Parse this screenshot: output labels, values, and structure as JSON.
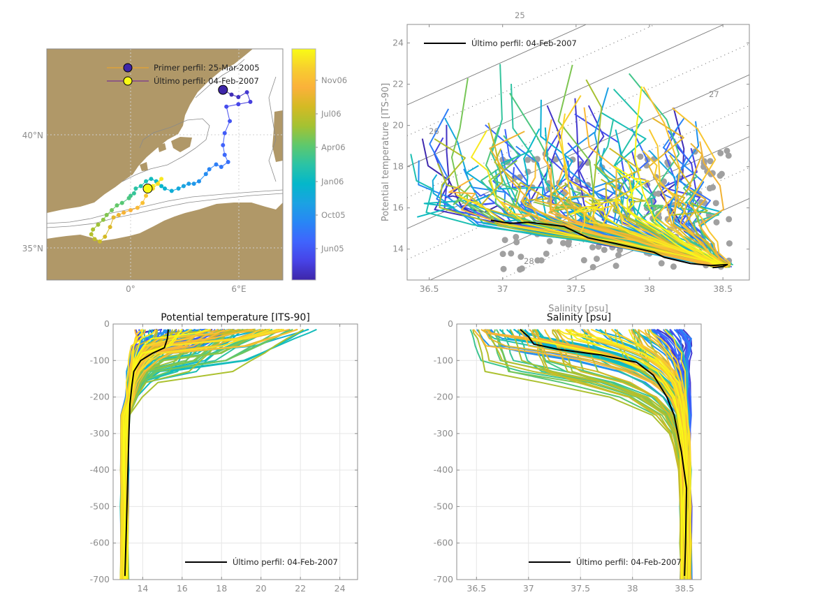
{
  "colors": {
    "land": "#b09868",
    "axis": "#8c8c8c",
    "tick_text": "#8c8c8c",
    "grid": "#e6e6e6",
    "isopycnal": "#7a7a7a",
    "last_profile": "#000000",
    "scatter_gray": "#a0a0a0",
    "colormap": [
      "#3e26a8",
      "#4743e7",
      "#3f64fd",
      "#2886f5",
      "#1ba2e2",
      "#04b7ca",
      "#2bc3a5",
      "#5ec86c",
      "#a4c232",
      "#d4ba24",
      "#fbb13a",
      "#f7cf2e",
      "#f9fb15"
    ]
  },
  "map_panel": {
    "legend": [
      {
        "label": "Primer perfil: 25-Mar-2005",
        "marker_color": "#3e26a8",
        "line_color": "#f5a623"
      },
      {
        "label": "Último perfil: 04-Feb-2007",
        "marker_color": "#f9fb15",
        "line_color": "#6a1b9a"
      }
    ],
    "lat_ticks": [
      "40°N",
      "35°N"
    ],
    "lon_ticks": [
      "0°",
      "6°E"
    ],
    "colorbar_ticks": [
      "Nov06",
      "Jul06",
      "Apr06",
      "Jan06",
      "Oct05",
      "Jun05"
    ]
  },
  "chart_data": [
    {
      "type": "scatter",
      "title": "",
      "description": "Float trajectory map, western Mediterranean, colored by date",
      "xlabel": "",
      "ylabel": "",
      "xlim": [
        -5.3,
        8.5
      ],
      "ylim": [
        33.7,
        43.3
      ],
      "x_ticks": [
        {
          "value": 0,
          "label": "0°"
        },
        {
          "value": 6,
          "label": "6°E"
        }
      ],
      "y_ticks": [
        {
          "value": 40,
          "label": "40°N"
        },
        {
          "value": 35,
          "label": "35°N"
        }
      ],
      "trajectory": {
        "lon": [
          5.0,
          5.5,
          5.9,
          6.4,
          6.6,
          5.9,
          5.2,
          5.4,
          5.1,
          5.0,
          5.1,
          5.3,
          4.9,
          4.6,
          4.2,
          4.0,
          3.6,
          3.3,
          3.0,
          2.7,
          2.4,
          2.0,
          1.6,
          1.4,
          1.1,
          0.8,
          0.5,
          0.2,
          -0.1,
          -0.2,
          -0.4,
          -0.5,
          -0.9,
          -1.2,
          -1.5,
          -1.8,
          -2.0,
          -2.3,
          -2.6,
          -2.7,
          -2.5,
          -2.2,
          -1.9,
          -1.6,
          -1.4,
          -1.1,
          -0.8,
          -0.4,
          0.0,
          0.3,
          0.5,
          0.6,
          0.9,
          1.2,
          1.4,
          0.9,
          0.6
        ],
        "lat": [
          41.6,
          41.4,
          41.3,
          41.5,
          41.1,
          41.0,
          40.9,
          40.3,
          39.8,
          39.3,
          38.9,
          38.6,
          38.4,
          38.5,
          38.3,
          38.1,
          37.8,
          37.7,
          37.7,
          37.6,
          37.5,
          37.4,
          37.5,
          37.6,
          37.8,
          37.9,
          37.8,
          37.6,
          37.5,
          37.3,
          37.2,
          37.1,
          36.9,
          36.8,
          36.6,
          36.4,
          36.2,
          36.0,
          35.8,
          35.6,
          35.4,
          35.3,
          35.5,
          35.9,
          36.3,
          36.4,
          36.5,
          36.6,
          36.7,
          36.9,
          37.2,
          37.4,
          37.5,
          37.7,
          37.9,
          37.6,
          37.5
        ],
        "first": {
          "lon": 5.0,
          "lat": 41.6,
          "date": "25-Mar-2005"
        },
        "last": {
          "lon": 0.6,
          "lat": 37.5,
          "date": "04-Feb-2007"
        }
      },
      "colorbar": {
        "ticks": [
          "Jun05",
          "Oct05",
          "Jan06",
          "Apr06",
          "Jul06",
          "Nov06"
        ],
        "range": [
          "25-Mar-2005",
          "04-Feb-2007"
        ]
      }
    },
    {
      "type": "line",
      "title": "",
      "description": "Theta-S diagram with isopycnals",
      "xlabel": "Salinity [psu]",
      "ylabel": "Potential temperature [ITS-90]",
      "xlim": [
        36.35,
        38.68
      ],
      "ylim": [
        12.5,
        24.9
      ],
      "x_ticks": [
        36.5,
        37,
        37.5,
        38,
        38.5
      ],
      "y_ticks": [
        14,
        16,
        18,
        20,
        22,
        24
      ],
      "isopycnal_labels": [
        "25",
        "26",
        "27",
        "28"
      ],
      "legend": [
        {
          "label": "Último perfil: 04-Feb-2007",
          "color": "#000000"
        }
      ],
      "last_profile": {
        "salinity": [
          36.92,
          37.05,
          37.18,
          37.42,
          37.58,
          37.75,
          38.03,
          38.1,
          38.28,
          38.42,
          38.53,
          38.5,
          38.43
        ],
        "temperature": [
          15.4,
          15.25,
          15.3,
          15.1,
          14.55,
          14.3,
          13.85,
          13.6,
          13.3,
          13.2,
          13.25,
          13.15,
          13.1
        ]
      },
      "series_note": "~150 colored profiles (by date) plus gray climatology dots"
    },
    {
      "type": "line",
      "title": "Potential temperature [ITS-90]",
      "xlabel": "",
      "ylabel": "",
      "xlim": [
        12.5,
        24.9
      ],
      "ylim": [
        -700,
        0
      ],
      "x_ticks": [
        14,
        16,
        18,
        20,
        22,
        24
      ],
      "y_ticks": [
        0,
        -100,
        -200,
        -300,
        -400,
        -500,
        -600,
        -700
      ],
      "legend": [
        {
          "label": "Último perfil: 04-Feb-2007",
          "color": "#000000"
        }
      ],
      "last_profile": {
        "temperature": [
          15.3,
          15.25,
          15.1,
          14.5,
          13.9,
          13.55,
          13.45,
          13.35,
          13.3,
          13.25,
          13.2,
          13.15,
          13.1
        ],
        "depth": [
          -15,
          -40,
          -65,
          -80,
          -100,
          -130,
          -170,
          -220,
          -300,
          -400,
          -500,
          -600,
          -690
        ]
      }
    },
    {
      "type": "line",
      "title": "Salinity [psu]",
      "xlabel": "",
      "ylabel": "",
      "xlim": [
        36.31,
        38.66
      ],
      "ylim": [
        -700,
        0
      ],
      "x_ticks": [
        36.5,
        37,
        37.5,
        38,
        38.5
      ],
      "y_ticks": [
        0,
        -100,
        -200,
        -300,
        -400,
        -500,
        -600,
        -700
      ],
      "legend": [
        {
          "label": "Último perfil: 04-Feb-2007",
          "color": "#000000"
        }
      ],
      "last_profile": {
        "salinity": [
          36.92,
          37.0,
          37.05,
          37.3,
          37.7,
          38.04,
          38.2,
          38.33,
          38.4,
          38.47,
          38.52,
          38.51,
          38.5
        ],
        "depth": [
          -15,
          -35,
          -55,
          -70,
          -85,
          -105,
          -140,
          -200,
          -250,
          -350,
          -450,
          -600,
          -690
        ]
      }
    }
  ]
}
